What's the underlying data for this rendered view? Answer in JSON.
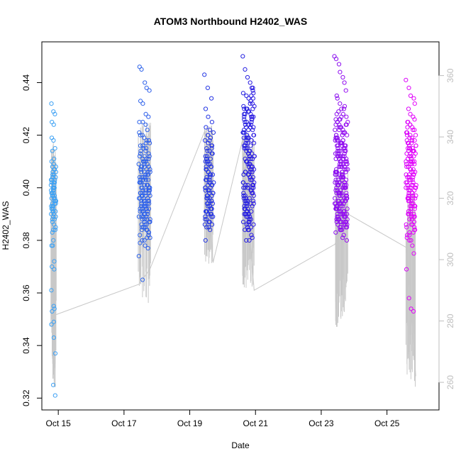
{
  "chart_data": {
    "type": "scatter",
    "title": "ATOM3 Northbound H2402_WAS",
    "xlabel": "Date",
    "ylabel": "H2402_WAS",
    "xlim": [
      "2015-10-14 12:00",
      "2015-10-26 14:00"
    ],
    "ylim": [
      0.3155,
      0.4555
    ],
    "y2lim": [
      251,
      371
    ],
    "x_ticks": [
      {
        "date": "2015-10-15",
        "label": "Oct 15"
      },
      {
        "date": "2015-10-17",
        "label": "Oct 17"
      },
      {
        "date": "2015-10-19",
        "label": "Oct 19"
      },
      {
        "date": "2015-10-21",
        "label": "Oct 21"
      },
      {
        "date": "2015-10-23",
        "label": "Oct 23"
      },
      {
        "date": "2015-10-25",
        "label": "Oct 25"
      }
    ],
    "y_ticks": [
      0.32,
      0.34,
      0.36,
      0.38,
      0.4,
      0.42,
      0.44
    ],
    "y_tick_labels": [
      "0.32",
      "0.34",
      "0.36",
      "0.38",
      "0.40",
      "0.42",
      "0.44"
    ],
    "y2_ticks": [
      260,
      280,
      300,
      320,
      340,
      360
    ],
    "y2_tick_labels": [
      "260",
      "280",
      "300",
      "320",
      "340",
      "360"
    ],
    "points_color": "gradient from #3fa9f5 (earliest) through #2020e0 to #ff00ff (latest)",
    "secondary_line_color": "#c8c8c8",
    "scatter_series": [
      {
        "time_range": [
          "2015-10-14 19:00",
          "2015-10-14 22:00"
        ],
        "count": 90,
        "values": [
          0.432,
          0.429,
          0.428,
          0.425,
          0.424,
          0.419,
          0.418,
          0.415,
          0.414,
          0.411,
          0.41,
          0.409,
          0.408,
          0.408,
          0.407,
          0.406,
          0.405,
          0.404,
          0.404,
          0.403,
          0.402,
          0.402,
          0.401,
          0.4,
          0.4,
          0.399,
          0.399,
          0.398,
          0.398,
          0.397,
          0.397,
          0.396,
          0.396,
          0.395,
          0.395,
          0.394,
          0.394,
          0.393,
          0.393,
          0.392,
          0.392,
          0.391,
          0.391,
          0.39,
          0.39,
          0.389,
          0.389,
          0.388,
          0.388,
          0.387,
          0.386,
          0.385,
          0.384,
          0.384,
          0.383,
          0.38,
          0.378,
          0.378,
          0.372,
          0.37,
          0.369,
          0.361,
          0.355,
          0.354,
          0.353,
          0.349,
          0.348,
          0.343,
          0.337,
          0.325,
          0.321,
          0.398,
          0.401,
          0.403,
          0.405,
          0.395,
          0.392,
          0.396,
          0.399,
          0.402,
          0.394,
          0.397,
          0.4,
          0.393,
          0.391,
          0.406,
          0.404,
          0.407,
          0.403,
          0.4
        ]
      },
      {
        "time_range": [
          "2015-10-17 11:00",
          "2015-10-17 19:00"
        ],
        "count": 160,
        "values": [
          0.446,
          0.445,
          0.44,
          0.438,
          0.437,
          0.433,
          0.432,
          0.428,
          0.427,
          0.425,
          0.425,
          0.424,
          0.422,
          0.421,
          0.42,
          0.419,
          0.418,
          0.417,
          0.416,
          0.415,
          0.414,
          0.413,
          0.412,
          0.411,
          0.41,
          0.409,
          0.409,
          0.408,
          0.408,
          0.407,
          0.407,
          0.406,
          0.406,
          0.405,
          0.405,
          0.404,
          0.404,
          0.403,
          0.403,
          0.402,
          0.402,
          0.401,
          0.401,
          0.4,
          0.4,
          0.399,
          0.399,
          0.398,
          0.398,
          0.397,
          0.397,
          0.396,
          0.396,
          0.395,
          0.395,
          0.394,
          0.394,
          0.393,
          0.393,
          0.392,
          0.392,
          0.391,
          0.391,
          0.39,
          0.39,
          0.389,
          0.389,
          0.388,
          0.388,
          0.387,
          0.386,
          0.385,
          0.384,
          0.383,
          0.382,
          0.38,
          0.378,
          0.377,
          0.374,
          0.365,
          0.41,
          0.405,
          0.4,
          0.398,
          0.395,
          0.392,
          0.408,
          0.402,
          0.396,
          0.393,
          0.399,
          0.403,
          0.397,
          0.394,
          0.401,
          0.406,
          0.404,
          0.391,
          0.389,
          0.411,
          0.407,
          0.4,
          0.398,
          0.395,
          0.402,
          0.397,
          0.393,
          0.39,
          0.388,
          0.385,
          0.412,
          0.415,
          0.418,
          0.42,
          0.41,
          0.405,
          0.4,
          0.396,
          0.392,
          0.387,
          0.384,
          0.381,
          0.414,
          0.409,
          0.403,
          0.399,
          0.394,
          0.389,
          0.386,
          0.383,
          0.413,
          0.408,
          0.404,
          0.401,
          0.397,
          0.393,
          0.39,
          0.386,
          0.382,
          0.379,
          0.416,
          0.411,
          0.406,
          0.402,
          0.398,
          0.394,
          0.391,
          0.387,
          0.384,
          0.38,
          0.417,
          0.412,
          0.407,
          0.403,
          0.399,
          0.395,
          0.392,
          0.388,
          0.385,
          0.381
        ]
      },
      {
        "time_range": [
          "2015-10-19 11:00",
          "2015-10-19 17:00"
        ],
        "count": 100,
        "values": [
          0.443,
          0.438,
          0.434,
          0.43,
          0.427,
          0.425,
          0.423,
          0.422,
          0.421,
          0.42,
          0.419,
          0.418,
          0.417,
          0.416,
          0.415,
          0.414,
          0.413,
          0.412,
          0.411,
          0.41,
          0.409,
          0.408,
          0.407,
          0.406,
          0.405,
          0.404,
          0.403,
          0.402,
          0.401,
          0.4,
          0.399,
          0.398,
          0.397,
          0.396,
          0.395,
          0.394,
          0.393,
          0.392,
          0.391,
          0.39,
          0.389,
          0.388,
          0.387,
          0.386,
          0.385,
          0.384,
          0.38,
          0.41,
          0.405,
          0.4,
          0.396,
          0.392,
          0.408,
          0.402,
          0.398,
          0.394,
          0.39,
          0.412,
          0.406,
          0.401,
          0.397,
          0.393,
          0.389,
          0.414,
          0.409,
          0.403,
          0.399,
          0.395,
          0.391,
          0.387,
          0.416,
          0.411,
          0.404,
          0.4,
          0.396,
          0.392,
          0.388,
          0.418,
          0.413,
          0.407,
          0.402,
          0.398,
          0.394,
          0.39,
          0.386,
          0.42,
          0.415,
          0.41,
          0.405,
          0.401,
          0.397,
          0.393,
          0.389,
          0.385,
          0.408,
          0.403,
          0.399,
          0.395,
          0.391,
          0.387
        ]
      },
      {
        "time_range": [
          "2015-10-20 15:00",
          "2015-10-20 23:00"
        ],
        "count": 180,
        "values": [
          0.45,
          0.445,
          0.442,
          0.44,
          0.438,
          0.436,
          0.435,
          0.434,
          0.433,
          0.432,
          0.431,
          0.43,
          0.429,
          0.428,
          0.427,
          0.426,
          0.425,
          0.424,
          0.423,
          0.422,
          0.421,
          0.42,
          0.419,
          0.418,
          0.417,
          0.416,
          0.415,
          0.414,
          0.413,
          0.412,
          0.411,
          0.41,
          0.409,
          0.408,
          0.407,
          0.406,
          0.405,
          0.404,
          0.403,
          0.402,
          0.401,
          0.4,
          0.399,
          0.398,
          0.397,
          0.396,
          0.395,
          0.394,
          0.393,
          0.392,
          0.391,
          0.39,
          0.388,
          0.386,
          0.384,
          0.38,
          0.38,
          0.425,
          0.42,
          0.415,
          0.41,
          0.405,
          0.4,
          0.395,
          0.39,
          0.43,
          0.424,
          0.418,
          0.412,
          0.406,
          0.401,
          0.396,
          0.391,
          0.387,
          0.428,
          0.422,
          0.416,
          0.411,
          0.405,
          0.4,
          0.394,
          0.389,
          0.426,
          0.421,
          0.417,
          0.413,
          0.409,
          0.404,
          0.398,
          0.393,
          0.388,
          0.427,
          0.423,
          0.419,
          0.414,
          0.408,
          0.403,
          0.397,
          0.392,
          0.386,
          0.429,
          0.424,
          0.42,
          0.416,
          0.41,
          0.404,
          0.399,
          0.394,
          0.39,
          0.385,
          0.432,
          0.426,
          0.421,
          0.415,
          0.409,
          0.403,
          0.398,
          0.393,
          0.389,
          0.384,
          0.433,
          0.427,
          0.422,
          0.417,
          0.411,
          0.406,
          0.401,
          0.395,
          0.39,
          0.386,
          0.435,
          0.43,
          0.424,
          0.418,
          0.412,
          0.407,
          0.402,
          0.396,
          0.391,
          0.387,
          0.438,
          0.431,
          0.425,
          0.419,
          0.414,
          0.408,
          0.402,
          0.397,
          0.392,
          0.388,
          0.437,
          0.43,
          0.423,
          0.417,
          0.411,
          0.406,
          0.4,
          0.395,
          0.39,
          0.385,
          0.436,
          0.428,
          0.42,
          0.413,
          0.407,
          0.401,
          0.396,
          0.391,
          0.387,
          0.382,
          0.434,
          0.427,
          0.419,
          0.412,
          0.406,
          0.4,
          0.394,
          0.389,
          0.384,
          0.381
        ]
      },
      {
        "time_range": [
          "2015-10-23 10:00",
          "2015-10-23 19:00"
        ],
        "count": 240,
        "values": [
          0.45,
          0.449,
          0.447,
          0.444,
          0.442,
          0.44,
          0.437,
          0.435,
          0.434,
          0.432,
          0.43,
          0.428,
          0.427,
          0.426,
          0.425,
          0.424,
          0.423,
          0.422,
          0.421,
          0.42,
          0.419,
          0.418,
          0.417,
          0.416,
          0.415,
          0.414,
          0.413,
          0.412,
          0.411,
          0.41,
          0.409,
          0.408,
          0.407,
          0.406,
          0.405,
          0.404,
          0.403,
          0.402,
          0.401,
          0.4,
          0.399,
          0.398,
          0.397,
          0.396,
          0.395,
          0.394,
          0.393,
          0.392,
          0.391,
          0.39,
          0.389,
          0.388,
          0.387,
          0.386,
          0.385,
          0.384,
          0.382,
          0.38,
          0.42,
          0.415,
          0.41,
          0.405,
          0.4,
          0.395,
          0.39,
          0.425,
          0.418,
          0.412,
          0.406,
          0.401,
          0.396,
          0.392,
          0.388,
          0.423,
          0.417,
          0.411,
          0.406,
          0.402,
          0.398,
          0.394,
          0.39,
          0.421,
          0.416,
          0.411,
          0.407,
          0.403,
          0.399,
          0.395,
          0.391,
          0.387,
          0.424,
          0.419,
          0.414,
          0.409,
          0.404,
          0.4,
          0.396,
          0.392,
          0.388,
          0.426,
          0.42,
          0.415,
          0.41,
          0.405,
          0.401,
          0.397,
          0.393,
          0.389,
          0.385,
          0.422,
          0.418,
          0.413,
          0.408,
          0.404,
          0.4,
          0.396,
          0.392,
          0.388,
          0.384,
          0.427,
          0.421,
          0.416,
          0.411,
          0.406,
          0.402,
          0.398,
          0.394,
          0.39,
          0.386,
          0.428,
          0.422,
          0.417,
          0.412,
          0.407,
          0.403,
          0.399,
          0.395,
          0.391,
          0.387,
          0.43,
          0.424,
          0.418,
          0.413,
          0.408,
          0.404,
          0.4,
          0.396,
          0.392,
          0.388,
          0.429,
          0.423,
          0.417,
          0.412,
          0.407,
          0.403,
          0.399,
          0.395,
          0.391,
          0.387,
          0.431,
          0.425,
          0.419,
          0.414,
          0.409,
          0.405,
          0.401,
          0.397,
          0.393,
          0.389,
          0.426,
          0.42,
          0.415,
          0.41,
          0.406,
          0.402,
          0.398,
          0.394,
          0.39,
          0.386,
          0.424,
          0.419,
          0.414,
          0.41,
          0.406,
          0.402,
          0.398,
          0.394,
          0.39,
          0.387,
          0.423,
          0.418,
          0.413,
          0.409,
          0.405,
          0.401,
          0.397,
          0.393,
          0.389,
          0.385,
          0.42,
          0.416,
          0.412,
          0.408,
          0.404,
          0.4,
          0.396,
          0.392,
          0.388,
          0.384,
          0.418,
          0.414,
          0.41,
          0.406,
          0.402,
          0.398,
          0.395,
          0.391,
          0.387,
          0.383,
          0.416,
          0.412,
          0.408,
          0.404,
          0.4,
          0.397,
          0.393,
          0.389,
          0.385,
          0.381,
          0.413,
          0.409,
          0.405,
          0.401,
          0.398,
          0.394,
          0.39,
          0.386
        ]
      },
      {
        "time_range": [
          "2015-10-25 14:00",
          "2015-10-25 21:00"
        ],
        "count": 150,
        "values": [
          0.441,
          0.438,
          0.435,
          0.434,
          0.432,
          0.43,
          0.428,
          0.427,
          0.426,
          0.425,
          0.424,
          0.423,
          0.422,
          0.421,
          0.42,
          0.419,
          0.418,
          0.417,
          0.416,
          0.415,
          0.414,
          0.413,
          0.412,
          0.411,
          0.41,
          0.409,
          0.408,
          0.407,
          0.406,
          0.405,
          0.404,
          0.403,
          0.402,
          0.401,
          0.4,
          0.399,
          0.398,
          0.397,
          0.396,
          0.395,
          0.394,
          0.392,
          0.39,
          0.388,
          0.386,
          0.384,
          0.382,
          0.38,
          0.378,
          0.375,
          0.369,
          0.358,
          0.354,
          0.353,
          0.42,
          0.415,
          0.41,
          0.405,
          0.4,
          0.395,
          0.39,
          0.422,
          0.416,
          0.411,
          0.406,
          0.401,
          0.396,
          0.391,
          0.424,
          0.418,
          0.413,
          0.408,
          0.403,
          0.398,
          0.393,
          0.425,
          0.419,
          0.414,
          0.409,
          0.404,
          0.399,
          0.394,
          0.389,
          0.423,
          0.417,
          0.412,
          0.407,
          0.402,
          0.397,
          0.392,
          0.387,
          0.421,
          0.415,
          0.41,
          0.405,
          0.4,
          0.396,
          0.392,
          0.388,
          0.42,
          0.414,
          0.409,
          0.404,
          0.4,
          0.396,
          0.393,
          0.389,
          0.385,
          0.418,
          0.413,
          0.409,
          0.405,
          0.401,
          0.397,
          0.393,
          0.389,
          0.385,
          0.382,
          0.417,
          0.412,
          0.408,
          0.404,
          0.4,
          0.396,
          0.393,
          0.39,
          0.386,
          0.383,
          0.416,
          0.411,
          0.407,
          0.403,
          0.399,
          0.395,
          0.391,
          0.388,
          0.384,
          0.381,
          0.415,
          0.41,
          0.406,
          0.402,
          0.398,
          0.394,
          0.39,
          0.386,
          0.383,
          0.38,
          0.414,
          0.41,
          0.405,
          0.401,
          0.397
        ]
      }
    ],
    "secondary_series": {
      "axis": "right",
      "description": "grey line trace",
      "anchor_points": [
        {
          "t": "2015-10-14 20:00",
          "v": 280
        },
        {
          "t": "2015-10-14 21:00",
          "v": 262
        },
        {
          "t": "2015-10-14 22:00",
          "v": 282
        },
        {
          "t": "2015-10-17 11:00",
          "v": 292
        },
        {
          "t": "2015-10-17 19:00",
          "v": 297
        },
        {
          "t": "2015-10-19 11:00",
          "v": 342
        },
        {
          "t": "2015-10-19 17:00",
          "v": 299
        },
        {
          "t": "2015-10-20 15:00",
          "v": 340
        },
        {
          "t": "2015-10-20 23:00",
          "v": 290
        },
        {
          "t": "2015-10-23 10:00",
          "v": 305
        },
        {
          "t": "2015-10-23 19:00",
          "v": 315
        },
        {
          "t": "2015-10-25 14:00",
          "v": 304
        },
        {
          "t": "2015-10-25 21:00",
          "v": 262
        }
      ],
      "clusters": [
        {
          "t_start": "2015-10-14 19:00",
          "t_end": "2015-10-14 22:00",
          "min": 258,
          "max": 340
        },
        {
          "t_start": "2015-10-17 11:00",
          "t_end": "2015-10-17 19:00",
          "min": 285,
          "max": 345
        },
        {
          "t_start": "2015-10-19 11:00",
          "t_end": "2015-10-19 17:00",
          "min": 298,
          "max": 344
        },
        {
          "t_start": "2015-10-20 15:00",
          "t_end": "2015-10-20 23:00",
          "min": 290,
          "max": 342
        },
        {
          "t_start": "2015-10-23 10:00",
          "t_end": "2015-10-23 19:00",
          "min": 278,
          "max": 330
        },
        {
          "t_start": "2015-10-25 14:00",
          "t_end": "2015-10-25 21:00",
          "min": 258,
          "max": 322
        }
      ]
    },
    "grid": false,
    "legend": "none"
  }
}
